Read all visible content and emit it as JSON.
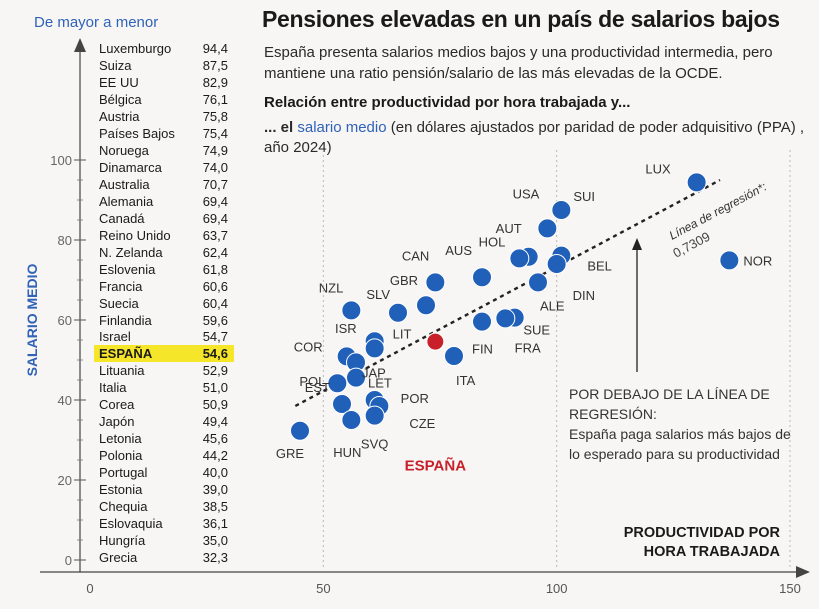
{
  "title": "Pensiones elevadas en un país de salarios bajos",
  "subtitle": "España presenta salarios medios bajos y una productividad intermedia, pero mantiene una ratio pensión/salario de las más elevadas de la OCDE.",
  "question": "Relación entre productividad por hora trabajada y...",
  "metric": {
    "prefix": "... el ",
    "highlight": "salario medio",
    "suffix": " (en dólares ajustados por paridad de poder adquisitivo (PPA) , año 2024)"
  },
  "ranking_header": "De mayor a menor",
  "ranking": [
    {
      "country": "Luxemburgo",
      "value": "94,4"
    },
    {
      "country": "Suiza",
      "value": "87,5"
    },
    {
      "country": "EE UU",
      "value": "82,9"
    },
    {
      "country": "Bélgica",
      "value": "76,1"
    },
    {
      "country": "Austria",
      "value": "75,8"
    },
    {
      "country": "Países Bajos",
      "value": "75,4"
    },
    {
      "country": "Noruega",
      "value": "74,9"
    },
    {
      "country": "Dinamarca",
      "value": "74,0"
    },
    {
      "country": "Australia",
      "value": "70,7"
    },
    {
      "country": "Alemania",
      "value": "69,4"
    },
    {
      "country": "Canadá",
      "value": "69,4"
    },
    {
      "country": "Reino Unido",
      "value": "63,7"
    },
    {
      "country": "N. Zelanda",
      "value": "62,4"
    },
    {
      "country": "Eslovenia",
      "value": "61,8"
    },
    {
      "country": "Francia",
      "value": "60,6"
    },
    {
      "country": "Suecia",
      "value": "60,4"
    },
    {
      "country": "Finlandia",
      "value": "59,6"
    },
    {
      "country": "Israel",
      "value": "54,7"
    },
    {
      "country": "ESPAÑA",
      "value": "54,6",
      "highlight": true
    },
    {
      "country": "Lituania",
      "value": "52,9"
    },
    {
      "country": "Italia",
      "value": "51,0"
    },
    {
      "country": "Corea",
      "value": "50,9"
    },
    {
      "country": "Japón",
      "value": "49,4"
    },
    {
      "country": "Letonia",
      "value": "45,6"
    },
    {
      "country": "Polonia",
      "value": "44,2"
    },
    {
      "country": "Portugal",
      "value": "40,0"
    },
    {
      "country": "Estonia",
      "value": "39,0"
    },
    {
      "country": "Chequia",
      "value": "38,5"
    },
    {
      "country": "Eslovaquia",
      "value": "36,1"
    },
    {
      "country": "Hungría",
      "value": "35,0"
    },
    {
      "country": "Grecia",
      "value": "32,3"
    }
  ],
  "note": {
    "title": "POR DEBAJO DE LA LÍNEA DE REGRESIÓN:",
    "body": "España paga salarios más bajos de lo esperado para su productividad"
  },
  "colors": {
    "point": "#2060b8",
    "spain": "#c8202a",
    "highlight": "#f5e62a",
    "accent_text": "#2f62b8"
  },
  "chart_data": {
    "type": "scatter",
    "xlabel": "PRODUCTIVIDAD POR HORA TRABAJADA",
    "ylabel": "SALARIO MEDIO",
    "x_ticks": [
      0,
      50,
      100,
      150
    ],
    "y_ticks": [
      0,
      20,
      40,
      60,
      80,
      100
    ],
    "xlim": [
      0,
      150
    ],
    "ylim": [
      0,
      100
    ],
    "regression": {
      "label": "Línea de regresión*:",
      "r": "0,7309",
      "from": [
        44,
        38.5
      ],
      "to": [
        135,
        95
      ]
    },
    "points": [
      {
        "label": "LUX",
        "x": 130,
        "y": 94.4
      },
      {
        "label": "SUI",
        "x": 101,
        "y": 87.5
      },
      {
        "label": "USA",
        "x": 98,
        "y": 82.9
      },
      {
        "label": "BEL",
        "x": 101,
        "y": 76.1
      },
      {
        "label": "AUT",
        "x": 94,
        "y": 75.8
      },
      {
        "label": "HOL",
        "x": 92,
        "y": 75.4
      },
      {
        "label": "NOR",
        "x": 137,
        "y": 74.9
      },
      {
        "label": "DIN",
        "x": 100,
        "y": 74.0
      },
      {
        "label": "AUS",
        "x": 84,
        "y": 70.7
      },
      {
        "label": "ALE",
        "x": 96,
        "y": 69.4
      },
      {
        "label": "CAN",
        "x": 74,
        "y": 69.4
      },
      {
        "label": "GBR",
        "x": 72,
        "y": 63.7
      },
      {
        "label": "NZL",
        "x": 56,
        "y": 62.4
      },
      {
        "label": "SLV",
        "x": 66,
        "y": 61.8
      },
      {
        "label": "FRA",
        "x": 91,
        "y": 60.6
      },
      {
        "label": "SUE",
        "x": 89,
        "y": 60.4
      },
      {
        "label": "FIN",
        "x": 84,
        "y": 59.6
      },
      {
        "label": "ISR",
        "x": 61,
        "y": 54.7
      },
      {
        "label": "ESPAÑA",
        "x": 74,
        "y": 54.6,
        "highlight": true
      },
      {
        "label": "LIT",
        "x": 61,
        "y": 52.9
      },
      {
        "label": "ITA",
        "x": 78,
        "y": 51.0
      },
      {
        "label": "COR",
        "x": 55,
        "y": 50.9
      },
      {
        "label": "JAP",
        "x": 57,
        "y": 49.4
      },
      {
        "label": "LET",
        "x": 57,
        "y": 45.6
      },
      {
        "label": "POL",
        "x": 53,
        "y": 44.2
      },
      {
        "label": "POR",
        "x": 61,
        "y": 40.0
      },
      {
        "label": "EST",
        "x": 54,
        "y": 39.0
      },
      {
        "label": "CZE",
        "x": 62,
        "y": 38.5
      },
      {
        "label": "SVQ",
        "x": 61,
        "y": 36.1
      },
      {
        "label": "HUN",
        "x": 56,
        "y": 35.0
      },
      {
        "label": "GRE",
        "x": 45,
        "y": 32.3
      }
    ]
  }
}
